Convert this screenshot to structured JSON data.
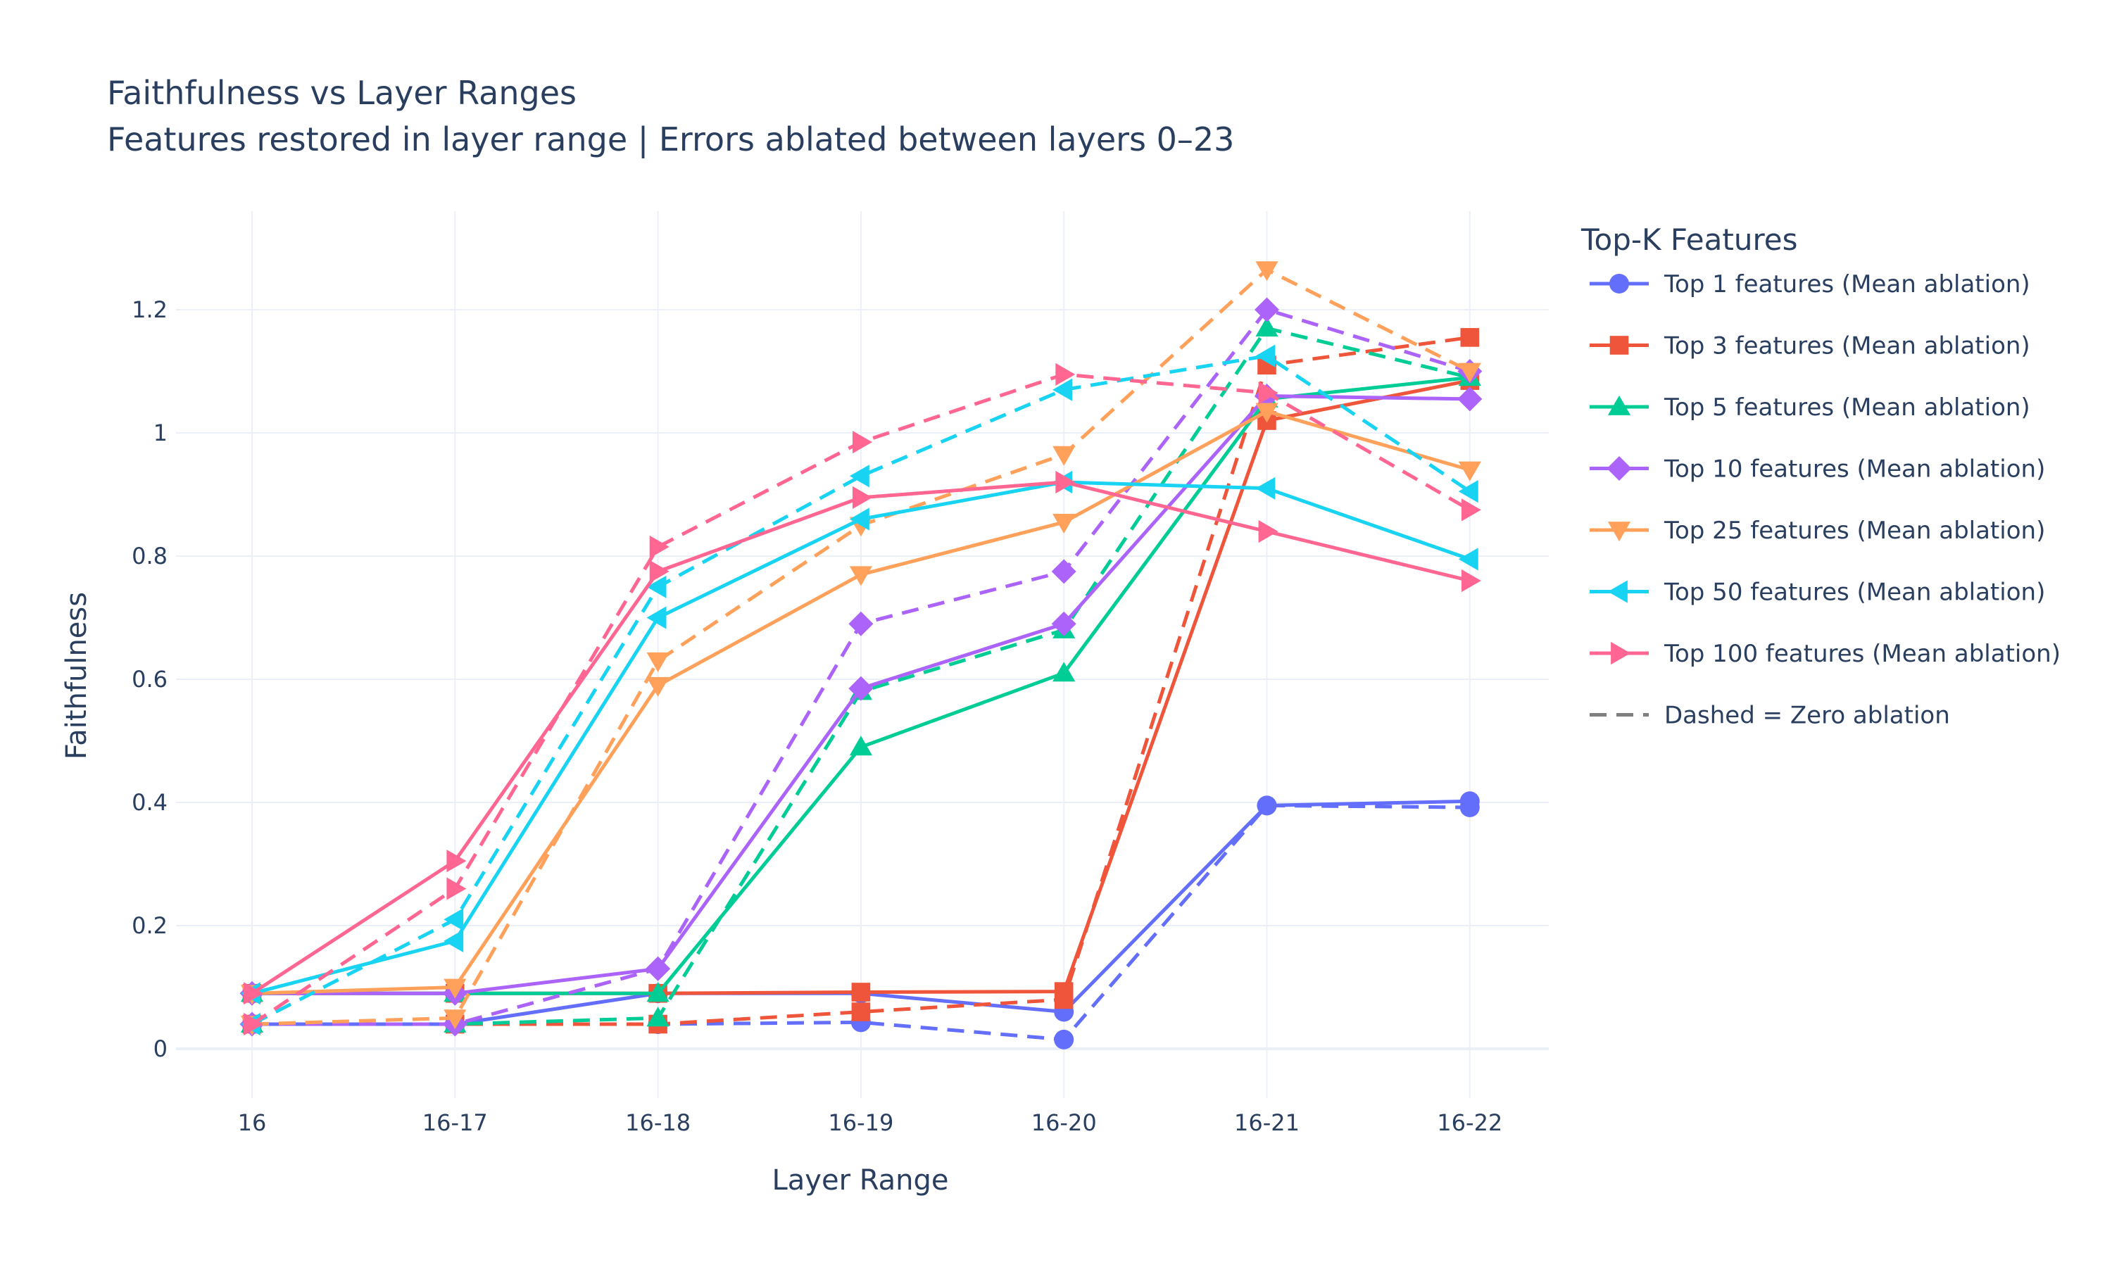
{
  "chart_data": {
    "type": "line",
    "title": "Faithfulness vs Layer Ranges",
    "subtitle": "Features restored in layer range | Errors ablated between layers 0–23",
    "xlabel": "Layer Range",
    "ylabel": "Faithfulness",
    "categories": [
      "16",
      "16-17",
      "16-18",
      "16-19",
      "16-20",
      "16-21",
      "16-22"
    ],
    "ylim": [
      -0.08,
      1.36
    ],
    "yticks": [
      0,
      0.2,
      0.4,
      0.6,
      0.8,
      1,
      1.2
    ],
    "ytick_labels": [
      "0",
      "0.2",
      "0.4",
      "0.6",
      "0.8",
      "1",
      "1.2"
    ],
    "grid": true,
    "legend_title": "Top-K Features",
    "legend_position": "right",
    "dashed_note": "Dashed = Zero ablation",
    "dashed_note_color": "#7f7f7f",
    "series": [
      {
        "name": "Top 1 features (Mean ablation)",
        "color": "#636efa",
        "marker": "circle",
        "dash": "solid",
        "values": [
          0.04,
          0.04,
          0.09,
          0.09,
          0.06,
          0.395,
          0.402
        ]
      },
      {
        "name": "Top 1 features (Zero ablation)",
        "color": "#636efa",
        "marker": "circle",
        "dash": "dash",
        "values": [
          0.04,
          0.04,
          0.04,
          0.043,
          0.015,
          0.395,
          0.392
        ]
      },
      {
        "name": "Top 3 features (Mean ablation)",
        "color": "#ef553b",
        "marker": "square",
        "dash": "solid",
        "values": [
          0.09,
          0.09,
          0.09,
          0.092,
          0.093,
          1.02,
          1.085
        ]
      },
      {
        "name": "Top 3 features (Zero ablation)",
        "color": "#ef553b",
        "marker": "square",
        "dash": "dash",
        "values": [
          0.04,
          0.04,
          0.04,
          0.06,
          0.08,
          1.11,
          1.155
        ]
      },
      {
        "name": "Top 5 features (Mean ablation)",
        "color": "#00cc96",
        "marker": "triangle-up",
        "dash": "solid",
        "values": [
          0.09,
          0.09,
          0.09,
          0.49,
          0.61,
          1.055,
          1.09
        ]
      },
      {
        "name": "Top 5 features (Zero ablation)",
        "color": "#00cc96",
        "marker": "triangle-up",
        "dash": "dash",
        "values": [
          0.04,
          0.04,
          0.05,
          0.58,
          0.68,
          1.17,
          1.09
        ]
      },
      {
        "name": "Top 10 features (Mean ablation)",
        "color": "#ab63fa",
        "marker": "diamond",
        "dash": "solid",
        "values": [
          0.09,
          0.09,
          0.13,
          0.585,
          0.69,
          1.06,
          1.055
        ]
      },
      {
        "name": "Top 10 features (Zero ablation)",
        "color": "#ab63fa",
        "marker": "diamond",
        "dash": "dash",
        "values": [
          0.04,
          0.04,
          0.13,
          0.69,
          0.775,
          1.2,
          1.1
        ]
      },
      {
        "name": "Top 25 features (Mean ablation)",
        "color": "#ffa15a",
        "marker": "triangle-down",
        "dash": "solid",
        "values": [
          0.09,
          0.1,
          0.59,
          0.77,
          0.855,
          1.035,
          0.94
        ]
      },
      {
        "name": "Top 25 features (Zero ablation)",
        "color": "#ffa15a",
        "marker": "triangle-down",
        "dash": "dash",
        "values": [
          0.04,
          0.05,
          0.63,
          0.85,
          0.965,
          1.265,
          1.1
        ]
      },
      {
        "name": "Top 50 features (Mean ablation)",
        "color": "#19d3f3",
        "marker": "triangle-left",
        "dash": "solid",
        "values": [
          0.09,
          0.175,
          0.7,
          0.86,
          0.92,
          0.91,
          0.795
        ]
      },
      {
        "name": "Top 50 features (Zero ablation)",
        "color": "#19d3f3",
        "marker": "triangle-left",
        "dash": "dash",
        "values": [
          0.04,
          0.21,
          0.75,
          0.93,
          1.07,
          1.125,
          0.905
        ]
      },
      {
        "name": "Top 100 features (Mean ablation)",
        "color": "#ff6692",
        "marker": "triangle-right",
        "dash": "solid",
        "values": [
          0.09,
          0.305,
          0.775,
          0.895,
          0.92,
          0.84,
          0.76
        ]
      },
      {
        "name": "Top 100 features (Zero ablation)",
        "color": "#ff6692",
        "marker": "triangle-right",
        "dash": "dash",
        "values": [
          0.04,
          0.26,
          0.815,
          0.985,
          1.095,
          1.065,
          0.875
        ]
      }
    ]
  }
}
